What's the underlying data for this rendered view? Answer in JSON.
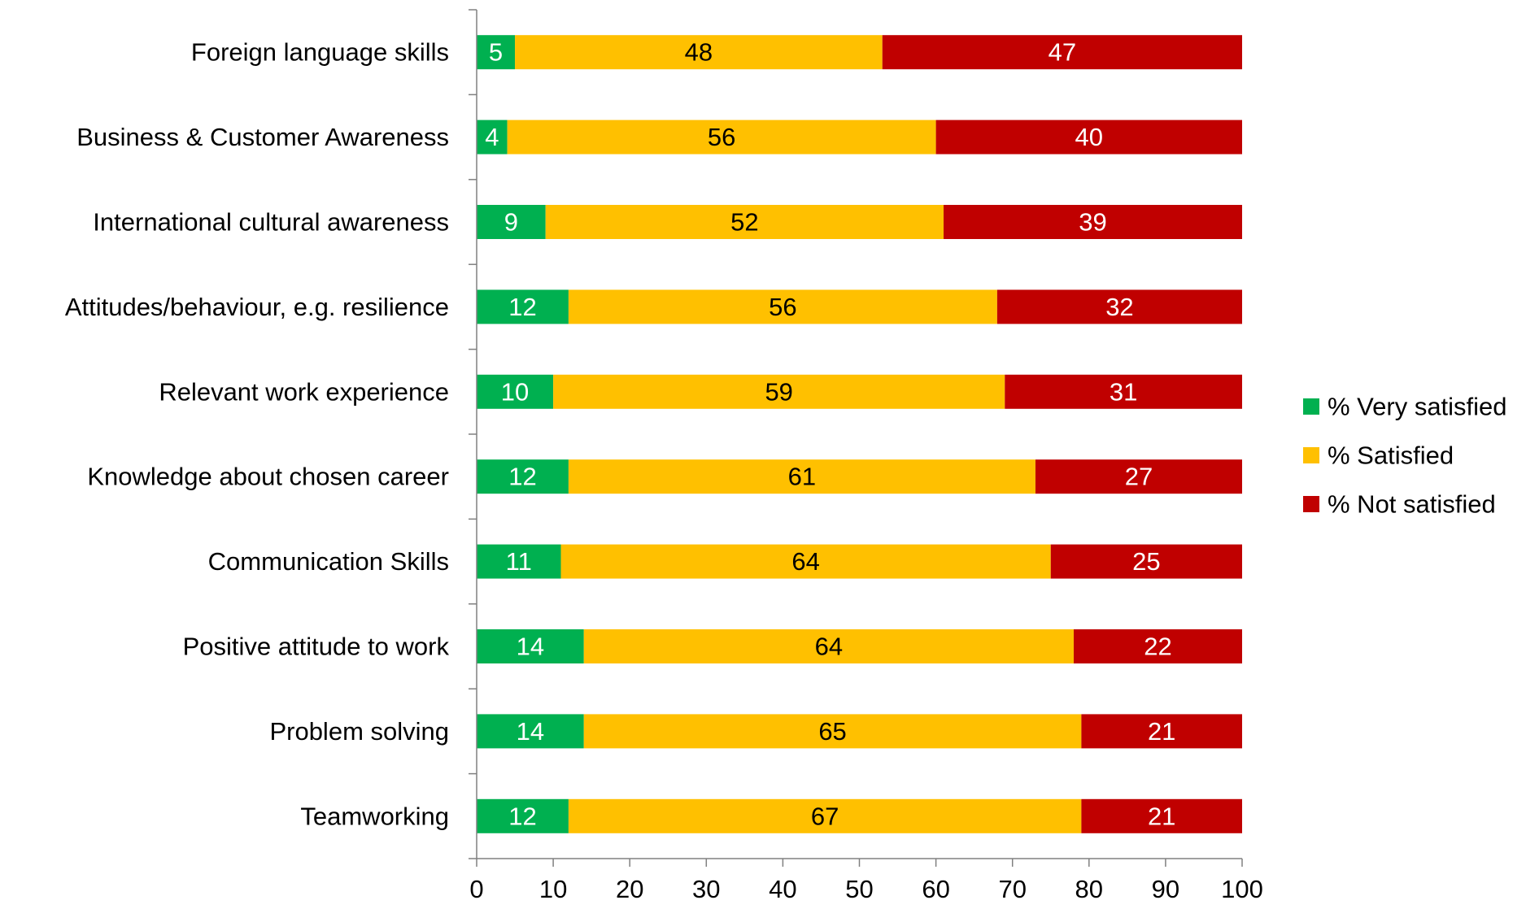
{
  "chart_data": {
    "type": "bar",
    "orientation": "horizontal",
    "stacked": true,
    "title": "",
    "xlabel": "",
    "ylabel": "",
    "xlim": [
      0,
      100
    ],
    "x_ticks": [
      "0",
      "10",
      "20",
      "30",
      "40",
      "50",
      "60",
      "70",
      "80",
      "90",
      "100"
    ],
    "grid": false,
    "legend_position": "right",
    "categories": [
      "Foreign language skills",
      "Business & Customer Awareness",
      "International cultural awareness",
      "Attitudes/behaviour, e.g. resilience",
      "Relevant work experience",
      "Knowledge about chosen career",
      "Communication Skills",
      "Positive attitude to work",
      "Problem solving",
      "Teamworking"
    ],
    "series": [
      {
        "name": "% Very satisfied",
        "color": "#00B050",
        "label_color": "#ffffff",
        "values": [
          5,
          4,
          9,
          12,
          10,
          12,
          11,
          14,
          14,
          12
        ]
      },
      {
        "name": "% Satisfied",
        "color": "#FFC000",
        "label_color": "#000000",
        "values": [
          48,
          56,
          52,
          56,
          59,
          61,
          64,
          64,
          65,
          67
        ]
      },
      {
        "name": "% Not satisfied",
        "color": "#C00000",
        "label_color": "#ffffff",
        "values": [
          47,
          40,
          39,
          32,
          31,
          27,
          25,
          22,
          21,
          21
        ]
      }
    ]
  }
}
